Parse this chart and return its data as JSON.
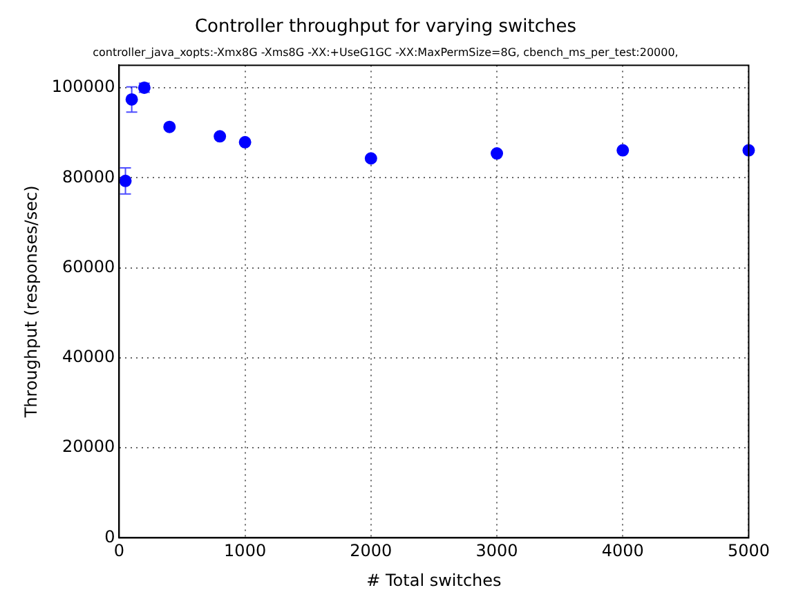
{
  "chart_data": {
    "type": "scatter",
    "title": "Controller throughput for varying switches",
    "subtitle": "controller_java_xopts:-Xmx8G -Xms8G -XX:+UseG1GC -XX:MaxPermSize=8G, cbench_ms_per_test:20000,",
    "xlabel": "# Total switches",
    "ylabel": "Throughput (responses/sec)",
    "x": [
      50,
      100,
      200,
      400,
      800,
      1000,
      2000,
      3000,
      4000,
      5000
    ],
    "series": [
      {
        "color": "#0000ff",
        "values": [
          79300,
          97400,
          100000,
          91300,
          89200,
          87900,
          84300,
          85400,
          86100,
          86100
        ],
        "errors": [
          2900,
          2800,
          1000,
          null,
          null,
          null,
          null,
          null,
          null,
          null
        ]
      }
    ],
    "xlim": [
      0,
      5000
    ],
    "xticks": [
      0,
      1000,
      2000,
      3000,
      4000,
      5000
    ],
    "ylim": [
      0,
      105000
    ],
    "yticks": [
      0,
      20000,
      40000,
      60000,
      80000,
      100000
    ],
    "grid": true,
    "marker": "circle",
    "legend": false
  }
}
